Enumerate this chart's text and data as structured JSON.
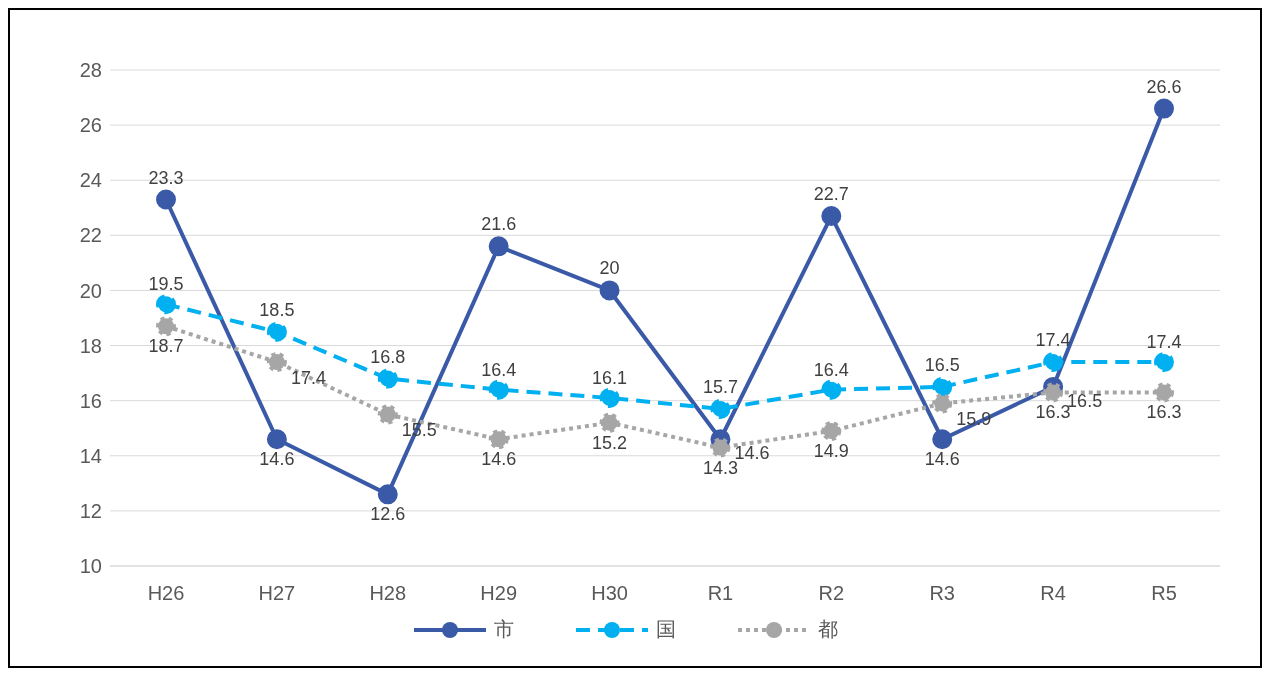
{
  "chart_data": {
    "type": "line",
    "categories": [
      "H26",
      "H27",
      "H28",
      "H29",
      "H30",
      "R1",
      "R2",
      "R3",
      "R4",
      "R5"
    ],
    "series": [
      {
        "name": "市",
        "color": "#3a5aa8",
        "line_style": "solid",
        "values": [
          23.3,
          14.6,
          12.6,
          21.6,
          20,
          14.6,
          22.7,
          14.6,
          16.5,
          26.6
        ]
      },
      {
        "name": "国",
        "color": "#00b0f0",
        "line_style": "dashed",
        "values": [
          19.5,
          18.5,
          16.8,
          16.4,
          16.1,
          15.7,
          16.4,
          16.5,
          17.4,
          17.4
        ]
      },
      {
        "name": "都",
        "color": "#a6a6a6",
        "line_style": "dotted",
        "values": [
          18.7,
          17.4,
          15.5,
          14.6,
          15.2,
          14.3,
          14.9,
          15.9,
          16.3,
          16.3
        ]
      }
    ],
    "ylim": [
      10,
      28
    ],
    "yticks": [
      10,
      12,
      14,
      16,
      18,
      20,
      22,
      24,
      26,
      28
    ],
    "grid": "y",
    "legend": "bottom",
    "marker": "circle",
    "data_labels": true
  }
}
